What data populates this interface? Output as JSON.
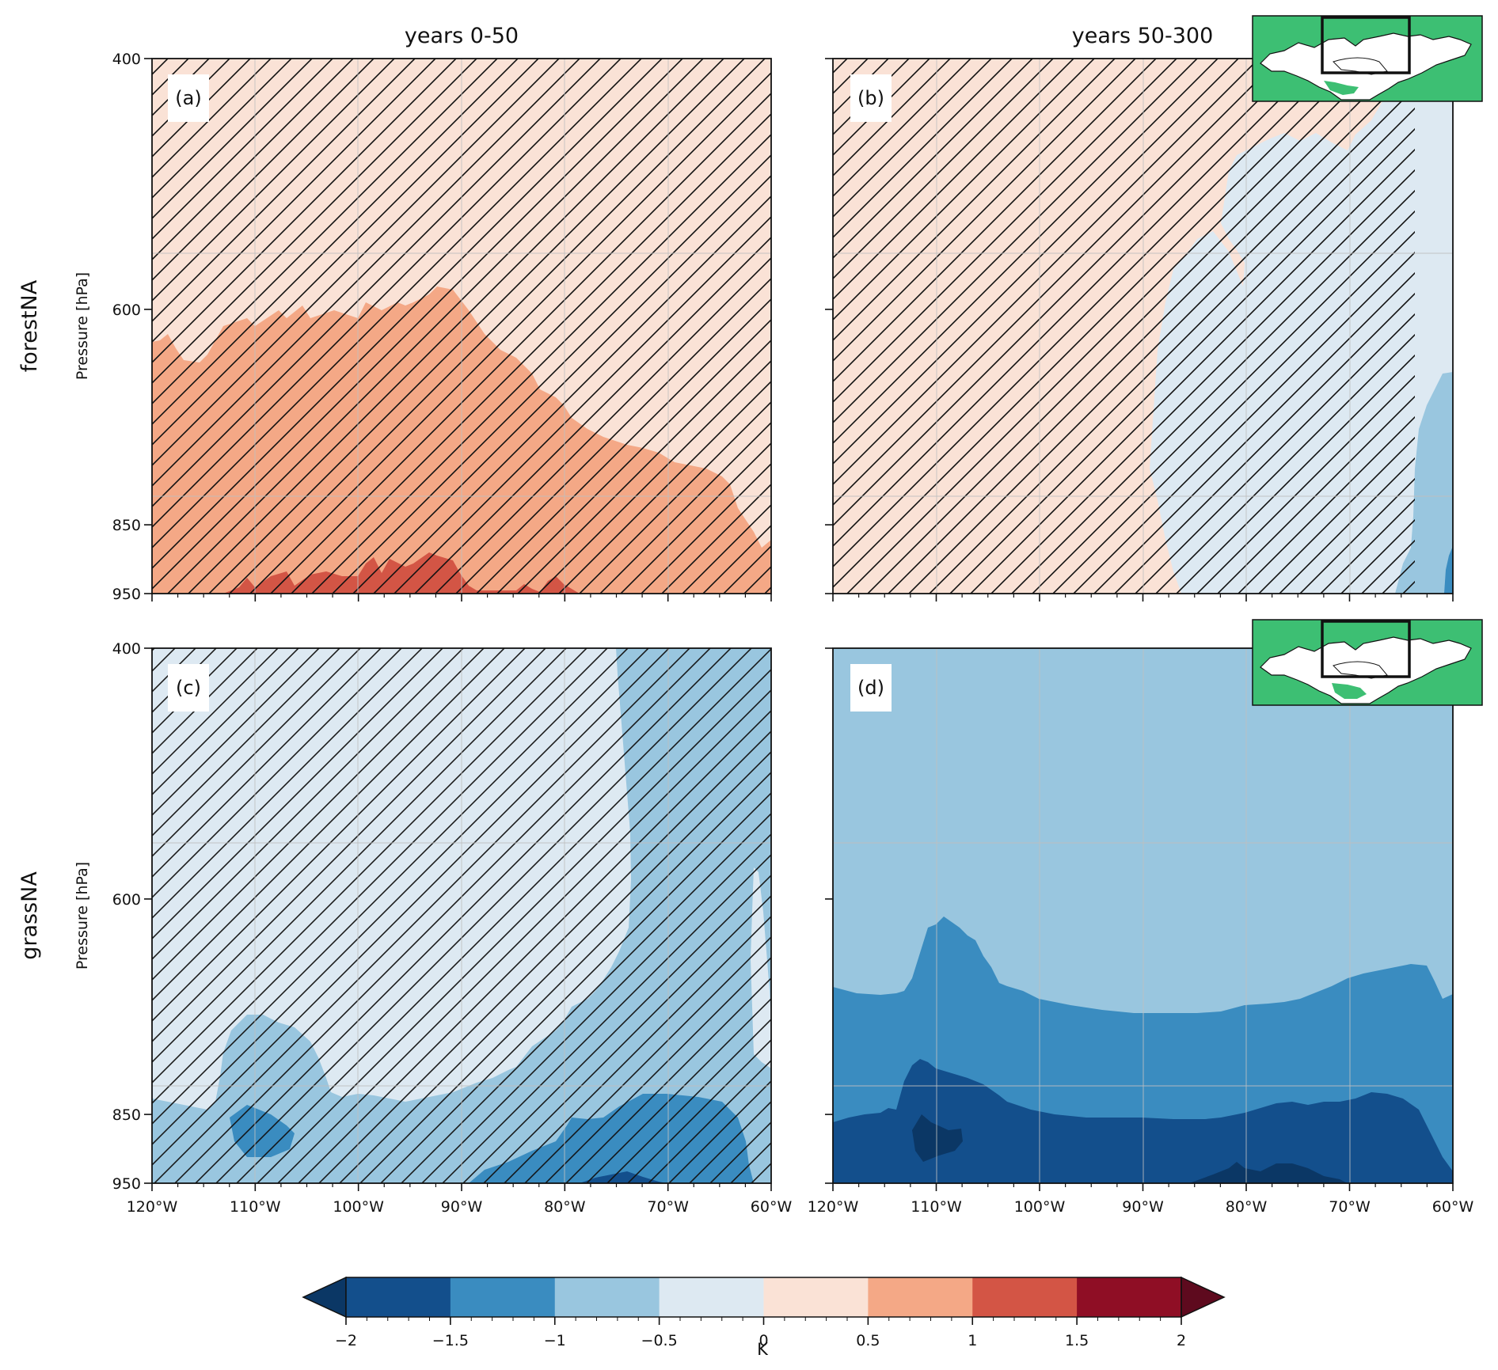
{
  "figure": {
    "col_titles": [
      "years 0-50",
      "years 50-300"
    ],
    "row_labels": [
      "forestNA",
      "grassNA"
    ]
  },
  "chart_data": {
    "type": "contour",
    "units": "K",
    "colorbar": {
      "label": "K",
      "levels": [
        -2,
        -1.5,
        -1,
        -0.5,
        0,
        0.5,
        1,
        1.5,
        2
      ],
      "tick_labels": [
        "−2",
        "−1.5",
        "−1",
        "−0.5",
        "0",
        "0.5",
        "1",
        "1.5",
        "2"
      ],
      "colors": [
        "#0b3765",
        "#134f8c",
        "#3a8cc0",
        "#99c6df",
        "#dde9f2",
        "#fae2d6",
        "#f4a886",
        "#d35545",
        "#8f0e25",
        "#5e0a1e"
      ],
      "extend": "both"
    },
    "x_axis": {
      "range": [
        -120,
        -60
      ],
      "ticks": [
        -120,
        -110,
        -100,
        -90,
        -80,
        -70,
        -60
      ],
      "tick_labels": [
        "120°W",
        "110°W",
        "100°W",
        "90°W",
        "80°W",
        "70°W",
        "60°W"
      ]
    },
    "y_axis": {
      "label": "Pressure [hPa]",
      "range": [
        950,
        400
      ],
      "ticks": [
        400,
        600,
        850,
        950
      ],
      "tick_labels": [
        "400",
        "600",
        "850",
        "950"
      ]
    },
    "panels": [
      {
        "id": "a",
        "label": "(a)",
        "row": "forestNA",
        "period": "years 0-50",
        "background_range": [
          0,
          0.5
        ],
        "hatched": true,
        "inset_map": false
      },
      {
        "id": "b",
        "label": "(b)",
        "row": "forestNA",
        "period": "years 50-300",
        "background_range": [
          0,
          0.5
        ],
        "hatched": true,
        "inset_map": true
      },
      {
        "id": "c",
        "label": "(c)",
        "row": "grassNA",
        "period": "years 0-50",
        "background_range": [
          -1,
          -0.5
        ],
        "hatched": true,
        "inset_map": false
      },
      {
        "id": "d",
        "label": "(d)",
        "row": "grassNA",
        "period": "years 50-300",
        "background_range": [
          -1,
          -0.5
        ],
        "hatched": false,
        "inset_map": true
      }
    ]
  }
}
